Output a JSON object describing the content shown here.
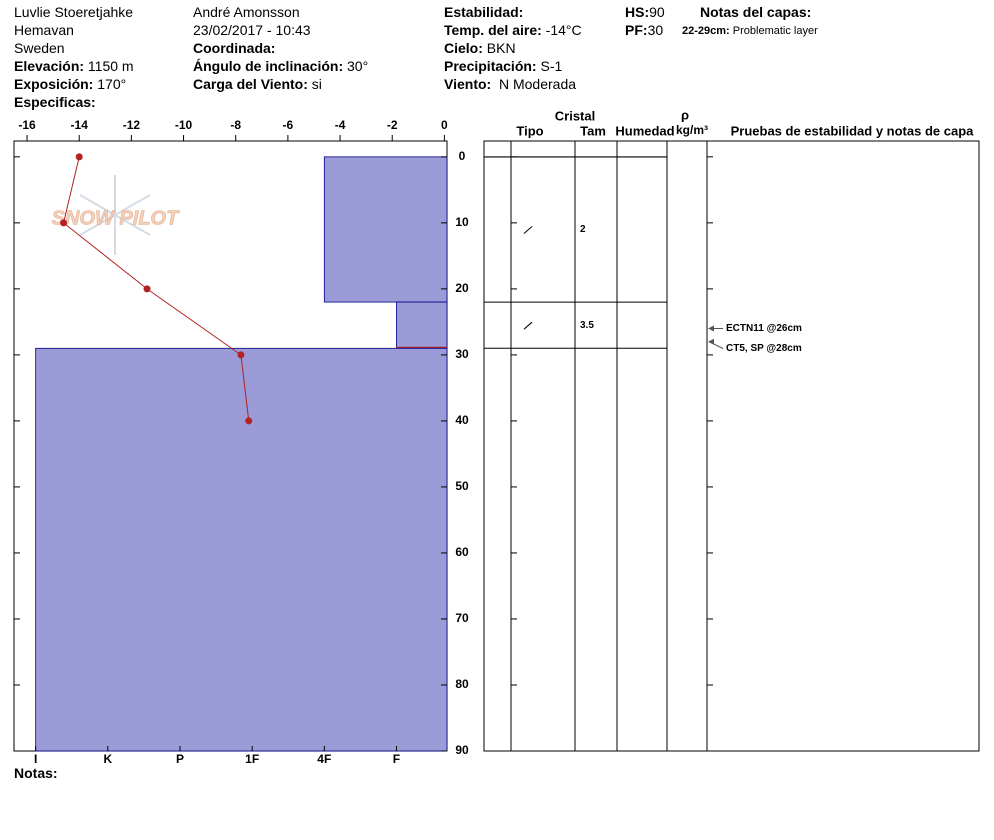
{
  "header": {
    "location": "Luvlie Stoeretjahke",
    "area": "Hemavan",
    "country": "Sweden",
    "elevation": {
      "label": "Elevación:",
      "value": "1150 m"
    },
    "aspect": {
      "label": "Exposición:",
      "value": "170°"
    },
    "specifics_label": "Especificas:",
    "observer": "André Amonsson",
    "datetime": "23/02/2017 - 10:43",
    "coordinates_label": "Coordinada:",
    "slope": {
      "label": "Ángulo de inclinación:",
      "value": "30°"
    },
    "wind_loading": {
      "label": "Carga del Viento:",
      "value": "si"
    },
    "stability_label": "Estabilidad:",
    "air_temp": {
      "label": "Temp. del aire:",
      "value": "-14°C"
    },
    "sky": {
      "label": "Cielo:",
      "value": "BKN"
    },
    "precipitation": {
      "label": "Precipitación:",
      "value": "S-1"
    },
    "wind": {
      "label": "Viento:",
      "value": "N Moderada"
    },
    "hs": {
      "label": "HS:",
      "value": 90
    },
    "pf": {
      "label": "PF:",
      "value": 30
    },
    "layer_notes": {
      "label": "Notas del capas:",
      "items": [
        {
          "label": "22-29cm:",
          "value": "Problematic layer"
        }
      ]
    }
  },
  "table": {
    "crystal": "Cristal",
    "type": "Tipo",
    "size": "Tam",
    "moisture": "Humedad",
    "density_symbol": "ρ",
    "density_unit": "kg/m³",
    "tests": "Pruebas de estabilidad y notas de capa"
  },
  "watermark": "SNOW PILOT",
  "footer": {
    "notes_label": "Notas:"
  },
  "chart_data": {
    "type": "profile",
    "ylim": [
      -2.4,
      90
    ],
    "yticks": [
      0,
      10,
      20,
      30,
      40,
      50,
      60,
      70,
      80,
      90
    ],
    "xlim": [
      -16.5,
      0.1
    ],
    "xticks": [
      -16,
      -14,
      -12,
      -10,
      -8,
      -6,
      -4,
      -2,
      0
    ],
    "hardness_lim": [
      6.3,
      0.3
    ],
    "hardness_ticks": [
      {
        "value": 6,
        "label": "I"
      },
      {
        "value": 5,
        "label": "K"
      },
      {
        "value": 4,
        "label": "P"
      },
      {
        "value": 3,
        "label": "1F"
      },
      {
        "value": 2,
        "label": "4F"
      },
      {
        "value": 1,
        "label": "F"
      }
    ],
    "temperature": {
      "depths": [
        0,
        10,
        20,
        30,
        40
      ],
      "values": [
        -14,
        -14.6,
        -11.4,
        -7.8,
        -7.5
      ],
      "color": "#b22222"
    },
    "layers": {
      "tops": [
        0,
        22,
        29
      ],
      "bottoms": [
        22,
        29,
        90
      ],
      "hardness": [
        2,
        1,
        6
      ],
      "crystal_sizes": [
        2,
        3.5,
        null
      ],
      "flagged": [
        false,
        true,
        false
      ],
      "color": "#9b9bd8",
      "flag_color": "#b22222"
    },
    "tests": [
      {
        "label": "ECTN11 @26cm",
        "depth": 26
      },
      {
        "label": "CT5, SP @28cm",
        "depth": 28
      }
    ]
  }
}
